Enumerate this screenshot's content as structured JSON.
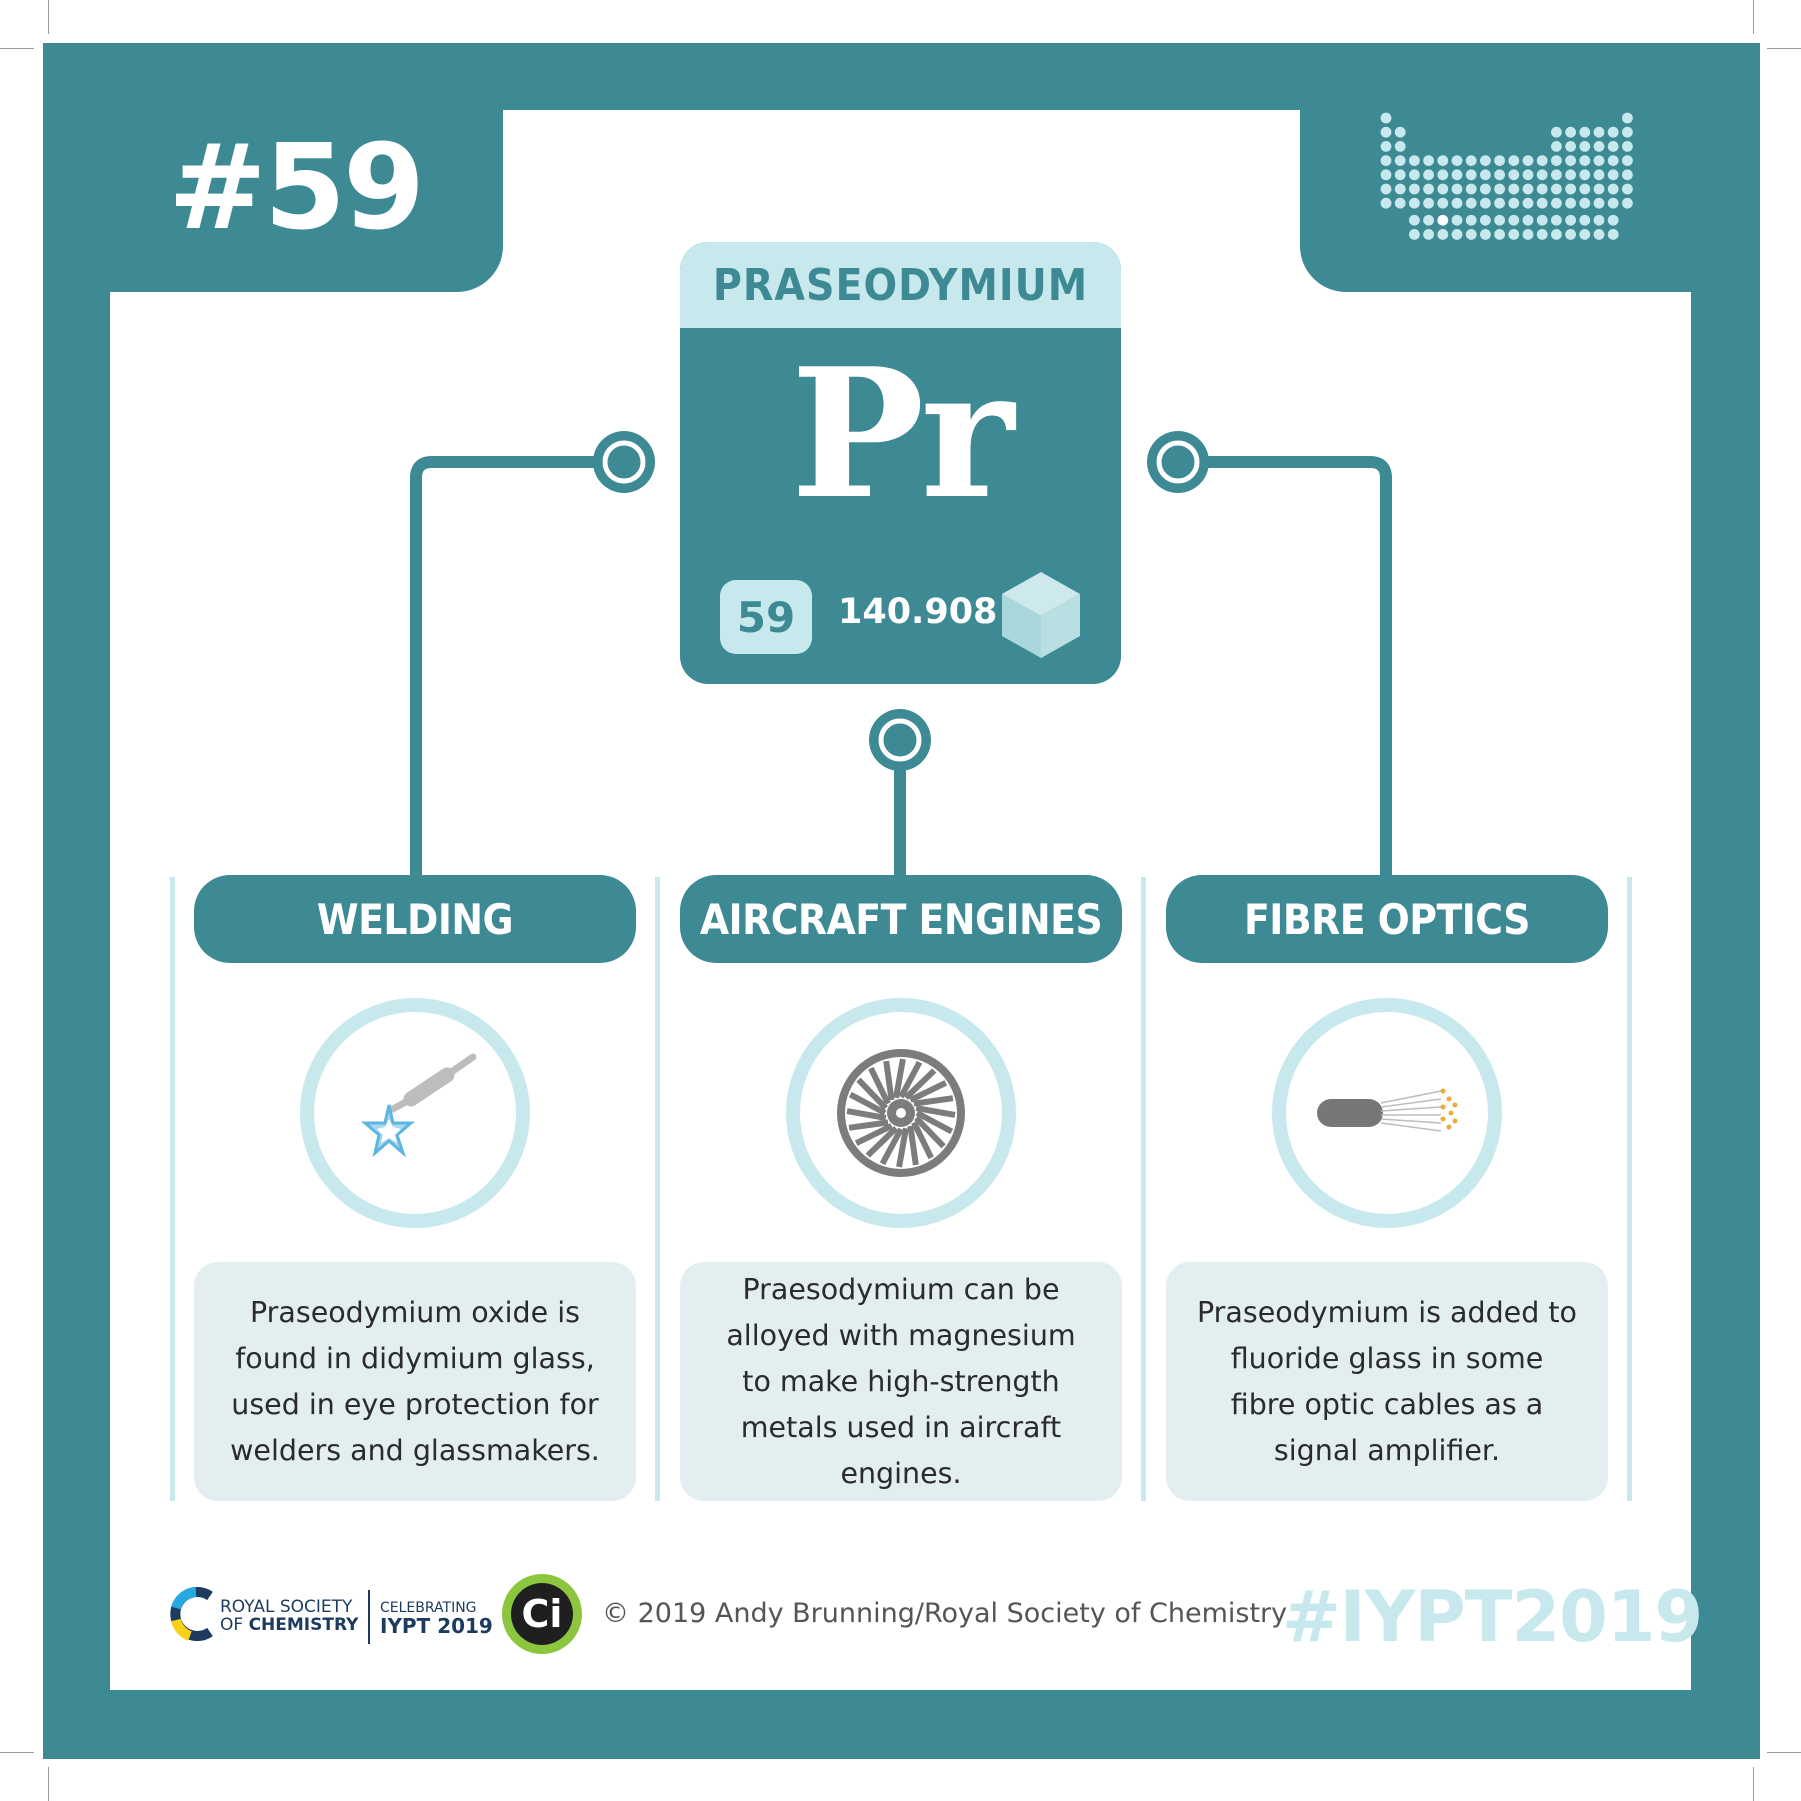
{
  "colors": {
    "teal": "#3d8a94",
    "pale_teal": "#c7e8ec",
    "box_grey": "#e3eef0"
  },
  "header": {
    "number": "#59",
    "periodic_table_icon": "periodic-table-icon"
  },
  "element": {
    "name": "PRASEODYMIUM",
    "symbol": "Pr",
    "atomic_number": "59",
    "atomic_mass": "140.908",
    "state_icon": "cube-icon"
  },
  "uses": [
    {
      "title": "WELDING",
      "icon": "welding-torch-icon",
      "text": "Praseodymium oxide is found in didymium glass, used in eye protection for welders and glassmakers."
    },
    {
      "title": "AIRCRAFT ENGINES",
      "icon": "jet-engine-icon",
      "text": "Praesodymium can be alloyed with magnesium to make high-strength metals used in aircraft engines."
    },
    {
      "title": "FIBRE OPTICS",
      "icon": "fibre-optic-cable-icon",
      "text": "Praseodymium is added to fluoride glass in some fibre optic cables as a signal amplifier."
    }
  ],
  "footer": {
    "rsc_line1": "ROYAL SOCIETY",
    "rsc_line2_prefix": "OF ",
    "rsc_line2_bold": "CHEMISTRY",
    "celebrating": "CELEBRATING",
    "iypt": "IYPT 2019",
    "ci_logo": "Ci",
    "copyright": "© 2019 Andy Brunning/Royal Society of Chemistry",
    "hashtag": "#IYPT2019"
  }
}
